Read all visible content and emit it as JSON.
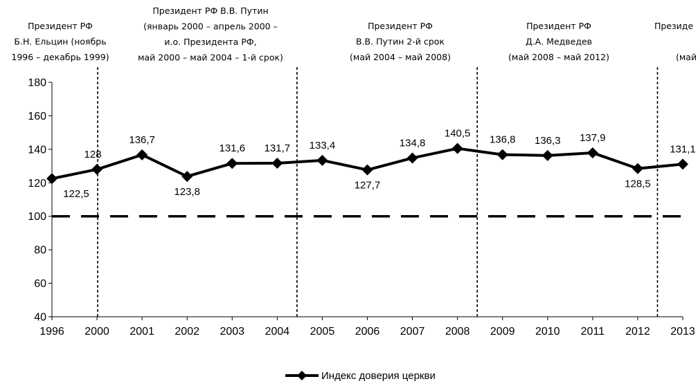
{
  "chart_data": {
    "type": "line",
    "categories": [
      "1996",
      "2000",
      "2001",
      "2002",
      "2003",
      "2004",
      "2005",
      "2006",
      "2007",
      "2008",
      "2009",
      "2010",
      "2011",
      "2012",
      "2013"
    ],
    "series": [
      {
        "name": "Индекс доверия церкви",
        "values": [
          122.5,
          128,
          136.7,
          123.8,
          131.6,
          131.7,
          133.4,
          127.7,
          134.8,
          140.5,
          136.8,
          136.3,
          137.9,
          128.5,
          131.1
        ],
        "data_labels": [
          "122,5",
          "128",
          "136,7",
          "123,8",
          "131,6",
          "131,7",
          "133,4",
          "127,7",
          "134,8",
          "140,5",
          "136,8",
          "136,3",
          "137,9",
          "128,5",
          "131,1"
        ],
        "color": "#000000",
        "marker": "diamond"
      }
    ],
    "reference_line": {
      "value": 100,
      "style": "dashed",
      "color": "#000000"
    },
    "ylim": [
      40,
      180
    ],
    "yticks": [
      "40",
      "60",
      "80",
      "100",
      "120",
      "140",
      "160",
      "180"
    ],
    "grid": false,
    "legend": "bottom",
    "period_separators_after": [
      "1996",
      "2004",
      "2008",
      "2012"
    ],
    "periods": [
      {
        "lines": [
          "Президент РФ",
          "Б.Н. Ельцин (ноябрь",
          "1996 – декабрь 1999)"
        ]
      },
      {
        "lines": [
          "Президент РФ В.В. Путин",
          "(январь 2000 – апрель 2000 –",
          "и.о. Президента РФ,",
          "май 2000 – май 2004 – 1-й срок)"
        ]
      },
      {
        "lines": [
          "Президент РФ",
          "В.В. Путин 2-й срок",
          "(май 2004 –  май 2008)"
        ]
      },
      {
        "lines": [
          "Президент РФ",
          "Д.А. Медведев",
          "(май 2008 –  май 2012)"
        ]
      },
      {
        "lines": [
          "Президе",
          "",
          "(май"
        ]
      }
    ]
  }
}
